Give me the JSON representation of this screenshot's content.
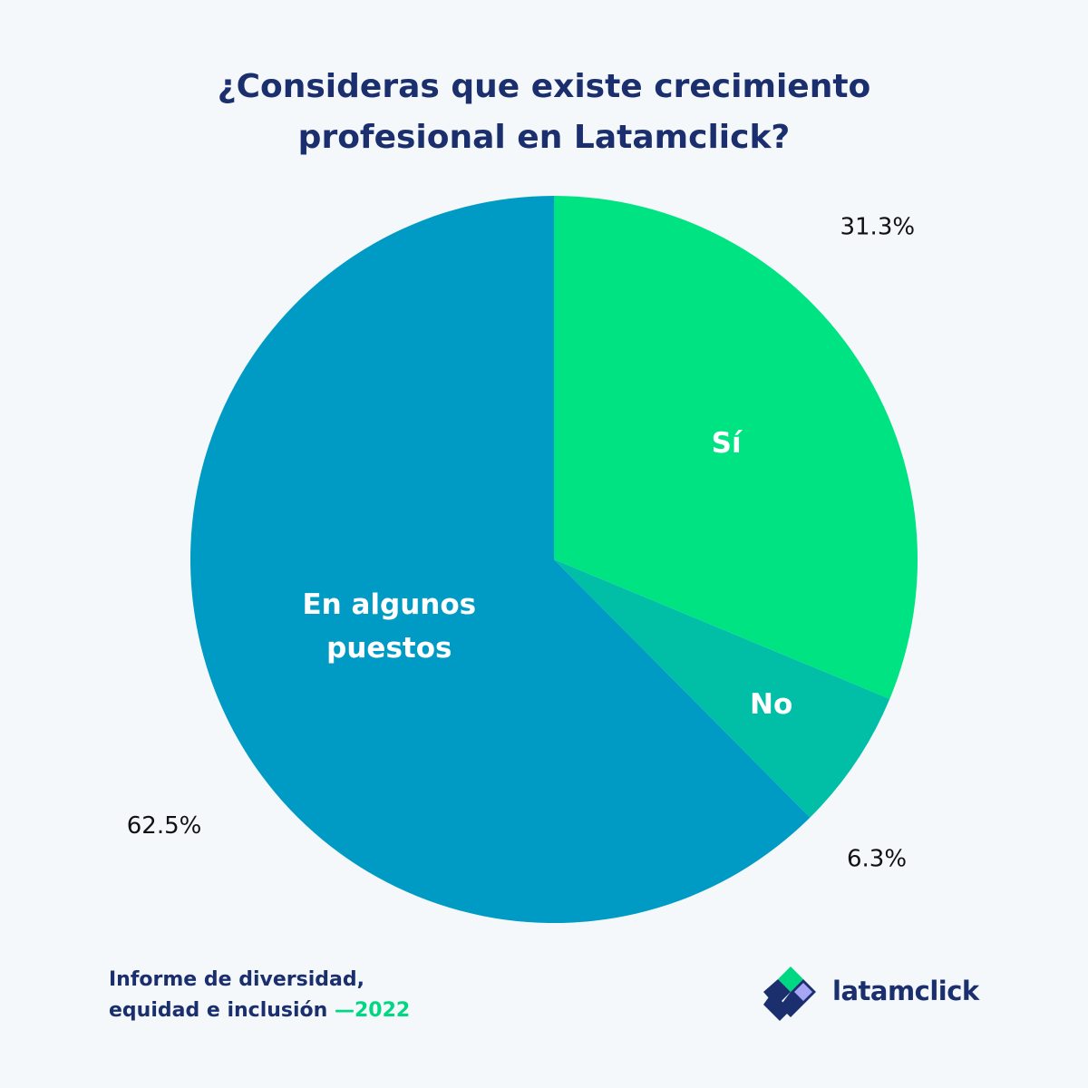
{
  "title_lines": [
    "¿Consideras que existe crecimiento",
    "profesional en Latamclick?"
  ],
  "chart_data": {
    "type": "pie",
    "start_angle_deg": 0,
    "direction": "clockwise",
    "slices": [
      {
        "label": "Sí",
        "value": 31.3,
        "display": "31.3%",
        "color": "#00e383"
      },
      {
        "label": "No",
        "value": 6.3,
        "display": "6.3%",
        "color": "#00bfa6"
      },
      {
        "label_lines": [
          "En algunos",
          "puestos"
        ],
        "value": 62.5,
        "display": "62.5%",
        "color": "#009bc4"
      }
    ]
  },
  "footer": {
    "line1": "Informe de diversidad,",
    "line2": "equidad e inclusión",
    "year": "—2022"
  },
  "brand": {
    "name": "latamclick",
    "logo_icon": "latamclick-diamond-logo-icon",
    "colors": {
      "dark": "#1b2f6e",
      "green": "#00d783",
      "lavender": "#a7a6f5"
    }
  }
}
